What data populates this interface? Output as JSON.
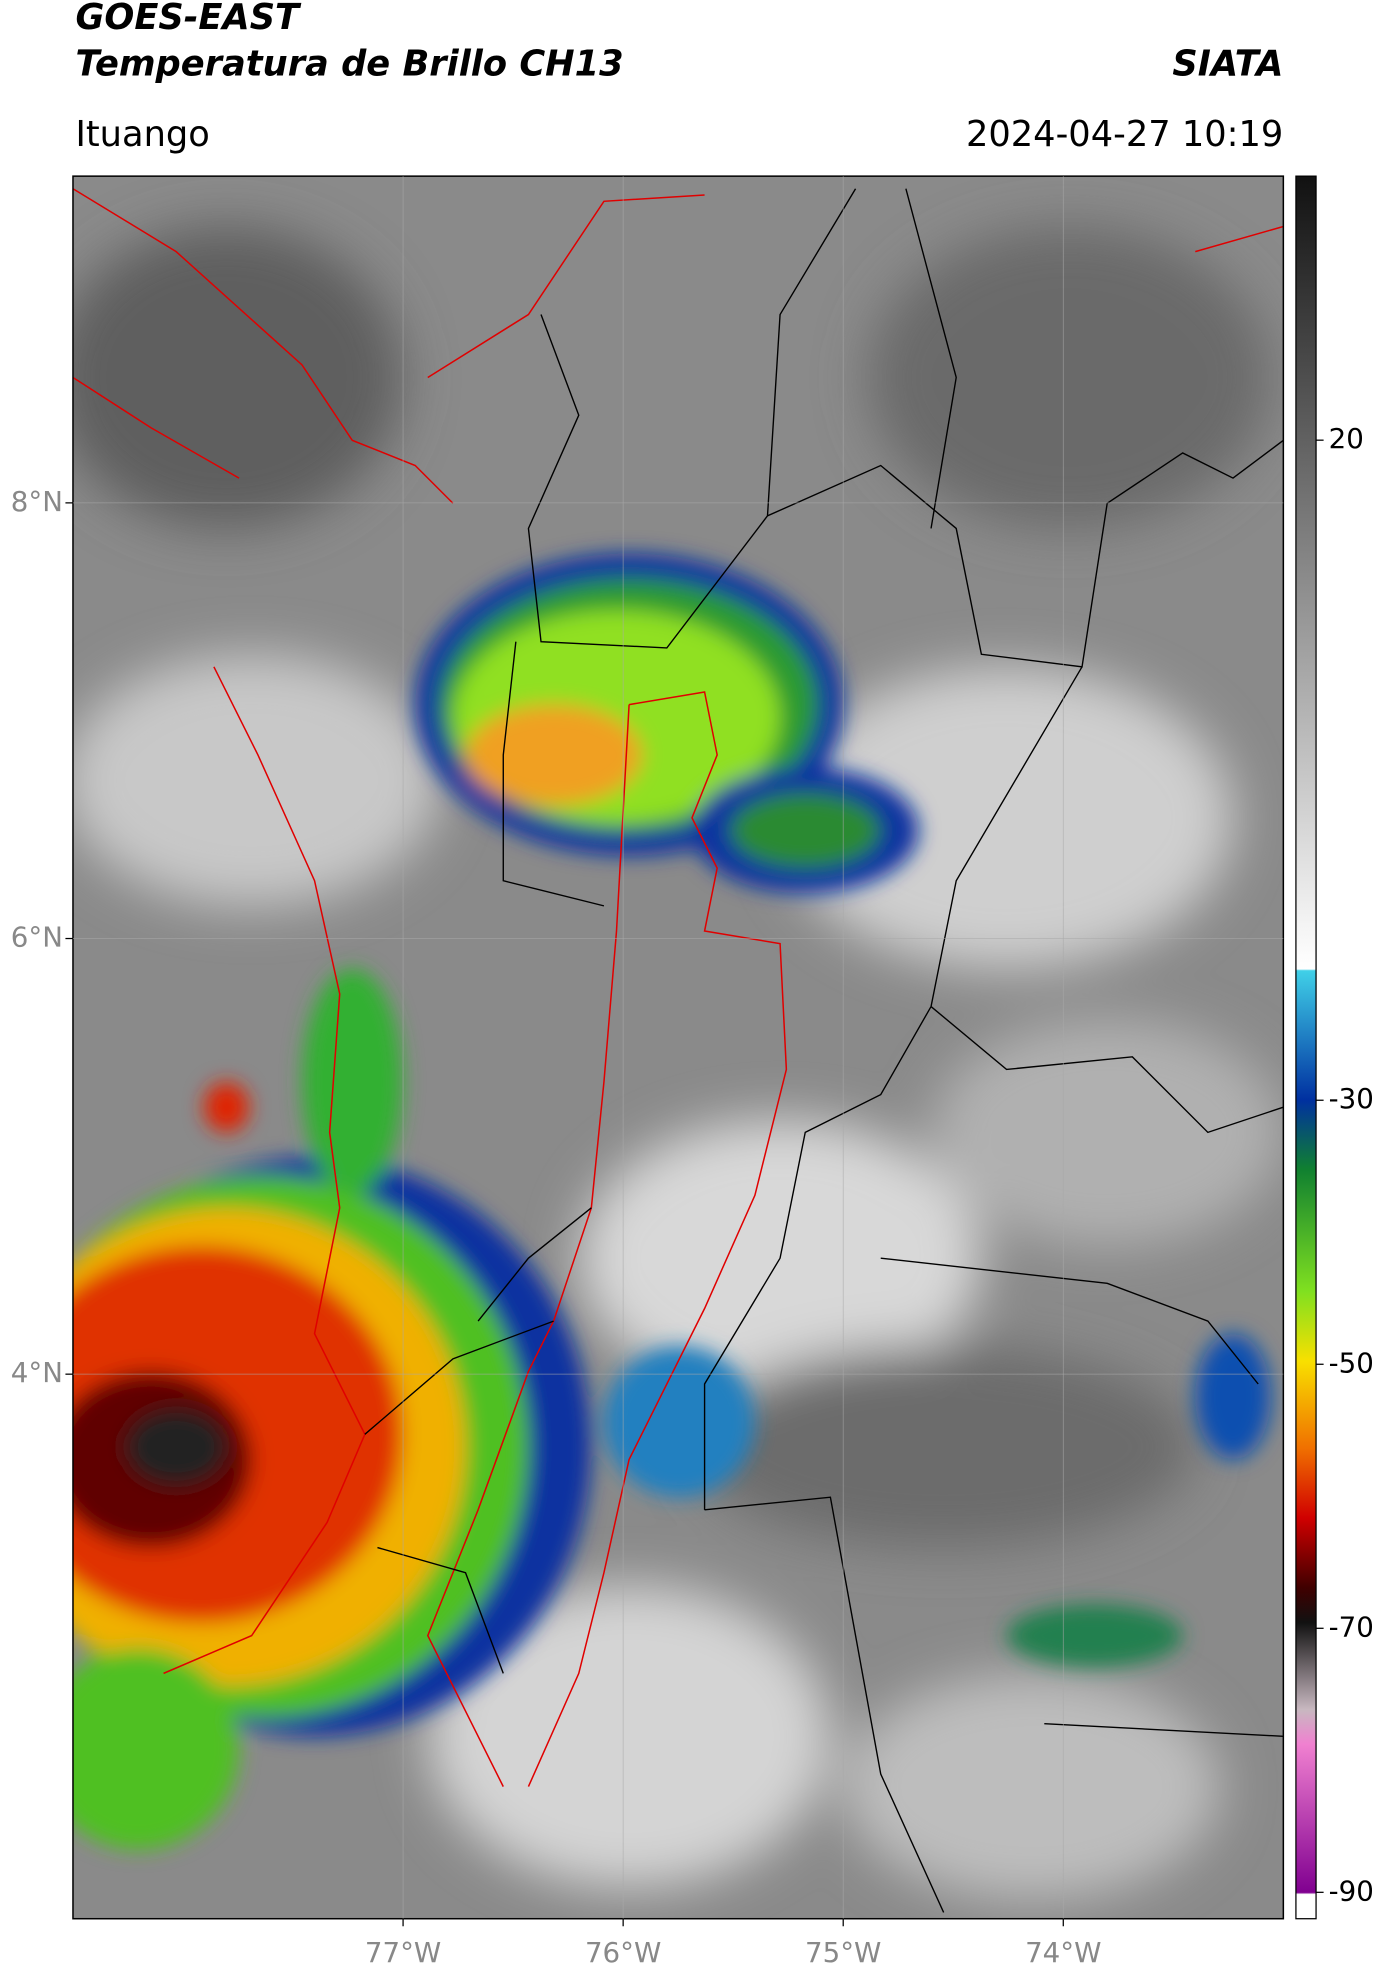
{
  "header": {
    "title": "GOES-EAST",
    "subtitle": "Temperatura de Brillo CH13",
    "brand": "SIATA",
    "location": "Ituango",
    "datetime": "2024-04-27 10:19"
  },
  "map": {
    "xlim": [
      -78.5,
      -73.0
    ],
    "ylim": [
      1.5,
      9.5
    ],
    "xticks": [
      {
        "value": -77,
        "label": "77°W"
      },
      {
        "value": -76,
        "label": "76°W"
      },
      {
        "value": -75,
        "label": "75°W"
      },
      {
        "value": -74,
        "label": "74°W"
      }
    ],
    "yticks": [
      {
        "value": 8,
        "label": "8°N"
      },
      {
        "value": 6,
        "label": "6°N"
      },
      {
        "value": 4,
        "label": "4°N"
      }
    ],
    "grid": true
  },
  "colorbar": {
    "lim": [
      -92,
      40
    ],
    "ticks": [
      20,
      -30,
      -50,
      -70,
      -90
    ]
  }
}
